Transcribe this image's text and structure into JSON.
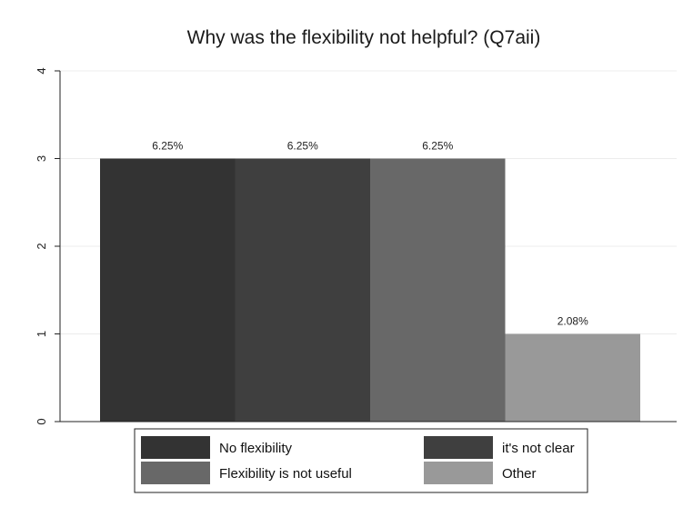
{
  "chart_data": {
    "type": "bar",
    "title": "Why was the flexibility not helpful? (Q7aii)",
    "xlabel": "",
    "ylabel": "",
    "ylim": [
      0,
      4
    ],
    "yticks": [
      0,
      1,
      2,
      3,
      4
    ],
    "grid": true,
    "legend_position": "bottom",
    "series": [
      {
        "name": "No flexibility",
        "value": 3,
        "label": "6.25%",
        "color": "#333333"
      },
      {
        "name": "it's not clear",
        "value": 3,
        "label": "6.25%",
        "color": "#3f3f3f"
      },
      {
        "name": "Flexibility is not useful",
        "value": 3,
        "label": "6.25%",
        "color": "#686868"
      },
      {
        "name": "Other",
        "value": 1,
        "label": "2.08%",
        "color": "#999999"
      }
    ]
  }
}
